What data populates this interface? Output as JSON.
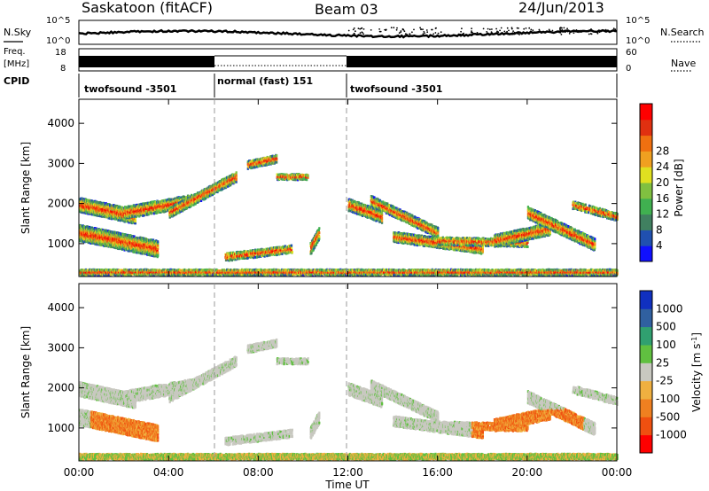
{
  "header": {
    "station": "Saskatoon (fitACF)",
    "beam": "Beam 03",
    "date": "24/Jun/2013"
  },
  "left_labels": {
    "nsky": "N.Sky",
    "freq": "Freq.",
    "freq_unit": "[MHz]",
    "cpid": "CPID"
  },
  "right_labels": {
    "nsearch": "N.Search",
    "nave": "Nave"
  },
  "nsky_axis": {
    "top": "10^5",
    "bottom": "10^0"
  },
  "nsearch_axis": {
    "top": "10^5",
    "bottom": "10^0"
  },
  "freq_axis": {
    "top": "18",
    "bottom": "8"
  },
  "nave_axis": {
    "top": "60",
    "bottom": "0"
  },
  "cpid_segments": [
    {
      "label": "twofsound -3501",
      "start_h": 0,
      "end_h": 6
    },
    {
      "label": "normal (fast) 151",
      "start_h": 6,
      "end_h": 12
    },
    {
      "label": "twofsound -3501",
      "start_h": 12,
      "end_h": 24
    }
  ],
  "chart_data": [
    {
      "type": "heatmap",
      "panel": "power",
      "ylabel": "Slant Range [km]",
      "xlim_hours": [
        0,
        24
      ],
      "ylim_km": [
        180,
        4600
      ],
      "yticks": [
        "1000",
        "2000",
        "3000",
        "4000"
      ],
      "colorbar": {
        "label": "Power [dB]",
        "ticks": [
          "4",
          "8",
          "12",
          "16",
          "20",
          "24",
          "28"
        ],
        "colors": [
          "#1010ff",
          "#2050b0",
          "#408060",
          "#40b050",
          "#80c040",
          "#e0e020",
          "#f0a020",
          "#f07010",
          "#e03010",
          "#ff0000"
        ]
      }
    },
    {
      "type": "heatmap",
      "panel": "velocity",
      "ylabel": "Slant Range [km]",
      "xlim_hours": [
        0,
        24
      ],
      "ylim_km": [
        180,
        4600
      ],
      "yticks": [
        "1000",
        "2000",
        "3000",
        "4000"
      ],
      "colorbar": {
        "label": "Velocity [m s^-1]",
        "ticks": [
          "1000",
          "500",
          "100",
          "25",
          "-25",
          "-100",
          "-500",
          "-1000"
        ],
        "colors": [
          "#1030c0",
          "#3060a0",
          "#30a070",
          "#60c040",
          "#c8c8c0",
          "#f0b040",
          "#f08020",
          "#f05010",
          "#ff0000"
        ]
      }
    }
  ],
  "x_axis": {
    "ticks": [
      "00:00",
      "04:00",
      "08:00",
      "12:00",
      "16:00",
      "20:00",
      "00:00"
    ],
    "label": "Time UT"
  }
}
